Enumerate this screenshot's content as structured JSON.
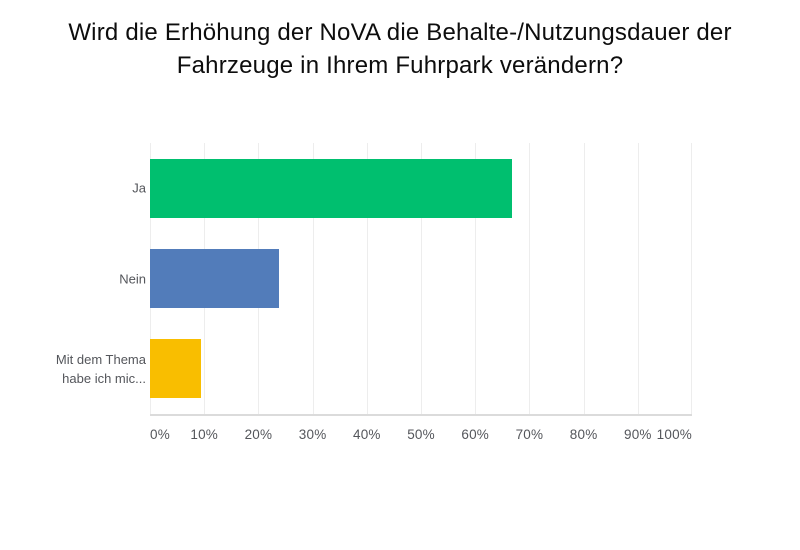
{
  "chart_data": {
    "type": "bar",
    "orientation": "horizontal",
    "title": "Wird die Erhöhung der NoVA die Behalte-/Nutzungsdauer der Fahrzeuge in Ihrem Fuhrpark verändern?",
    "title_lines": [
      "Wird die Erhöhung der NoVA die Behalte-/Nutzungsdauer der",
      "Fahrzeuge in Ihrem Fuhrpark verändern?"
    ],
    "categories": [
      "Ja",
      "Nein",
      "Mit dem Thema habe ich mic..."
    ],
    "values": [
      66.7,
      23.8,
      9.5
    ],
    "value_unit": "%",
    "bar_colors": [
      "#00BF6F",
      "#527CBA",
      "#F9BE00"
    ],
    "x_tick_labels": [
      "0%",
      "10%",
      "20%",
      "30%",
      "40%",
      "50%",
      "60%",
      "70%",
      "80%",
      "90%",
      "100%"
    ],
    "xlim": [
      0,
      100
    ],
    "xlabel": "",
    "ylabel": "",
    "legend": "none",
    "grid": "vertical",
    "data_labels": "none",
    "colors": {
      "title_text": "#0D0D0D",
      "axis_text": "#54565B",
      "gridline": "#EDEDED",
      "axis_line": "#DBDBDB",
      "background": "#FFFFFF"
    }
  }
}
